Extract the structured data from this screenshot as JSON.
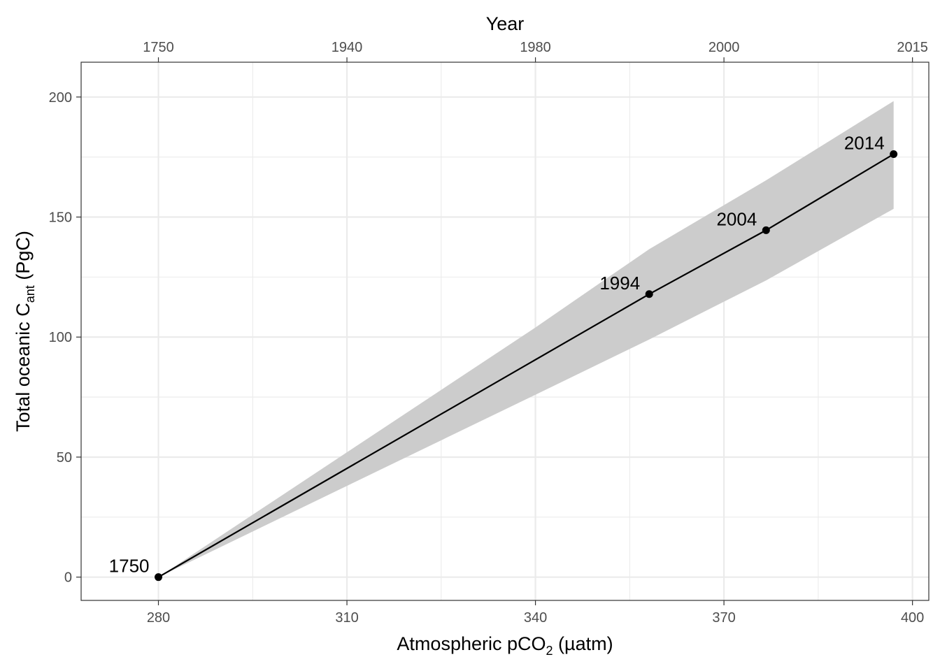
{
  "chart_data": {
    "type": "line",
    "xlabel": "Atmospheric pCO",
    "xlabel_sub": "2",
    "xlabel_unit": " (µatm)",
    "ylabel_prefix": "Total oceanic C",
    "ylabel_sub": "ant",
    "ylabel_unit": " (PgC)",
    "top_axis_title": "Year",
    "xlim": [
      267.7,
      402.6
    ],
    "ylim": [
      -9.7,
      214.5
    ],
    "x_ticks": [
      280,
      310,
      340,
      370,
      400
    ],
    "x_tick_labels": [
      "280",
      "310",
      "340",
      "370",
      "400"
    ],
    "y_ticks": [
      0,
      50,
      100,
      150,
      200
    ],
    "y_tick_labels": [
      "0",
      "50",
      "100",
      "150",
      "200"
    ],
    "top_ticks": [
      280,
      310,
      340,
      370,
      400
    ],
    "top_tick_labels": [
      "1750",
      "1940",
      "1980",
      "2000",
      "2015"
    ],
    "grid": true,
    "series": [
      {
        "points": [
          {
            "x": 280,
            "y": 0,
            "label": "1750"
          },
          {
            "x": 358.1,
            "y": 117.9,
            "label": "1994"
          },
          {
            "x": 376.7,
            "y": 144.5,
            "label": "2004"
          },
          {
            "x": 397,
            "y": 176.2,
            "label": "2014"
          }
        ]
      }
    ],
    "ribbon": {
      "x": [
        280,
        340,
        358.1,
        376.7,
        397
      ],
      "upper": [
        0,
        104,
        136.6,
        165.3,
        198.3
      ],
      "lower": [
        0,
        76,
        99,
        123.6,
        153.4
      ]
    },
    "colors": {
      "line": "#000000",
      "ribbon": "#cccccc",
      "grid": "#ebebeb",
      "panel_border": "#333333"
    }
  }
}
